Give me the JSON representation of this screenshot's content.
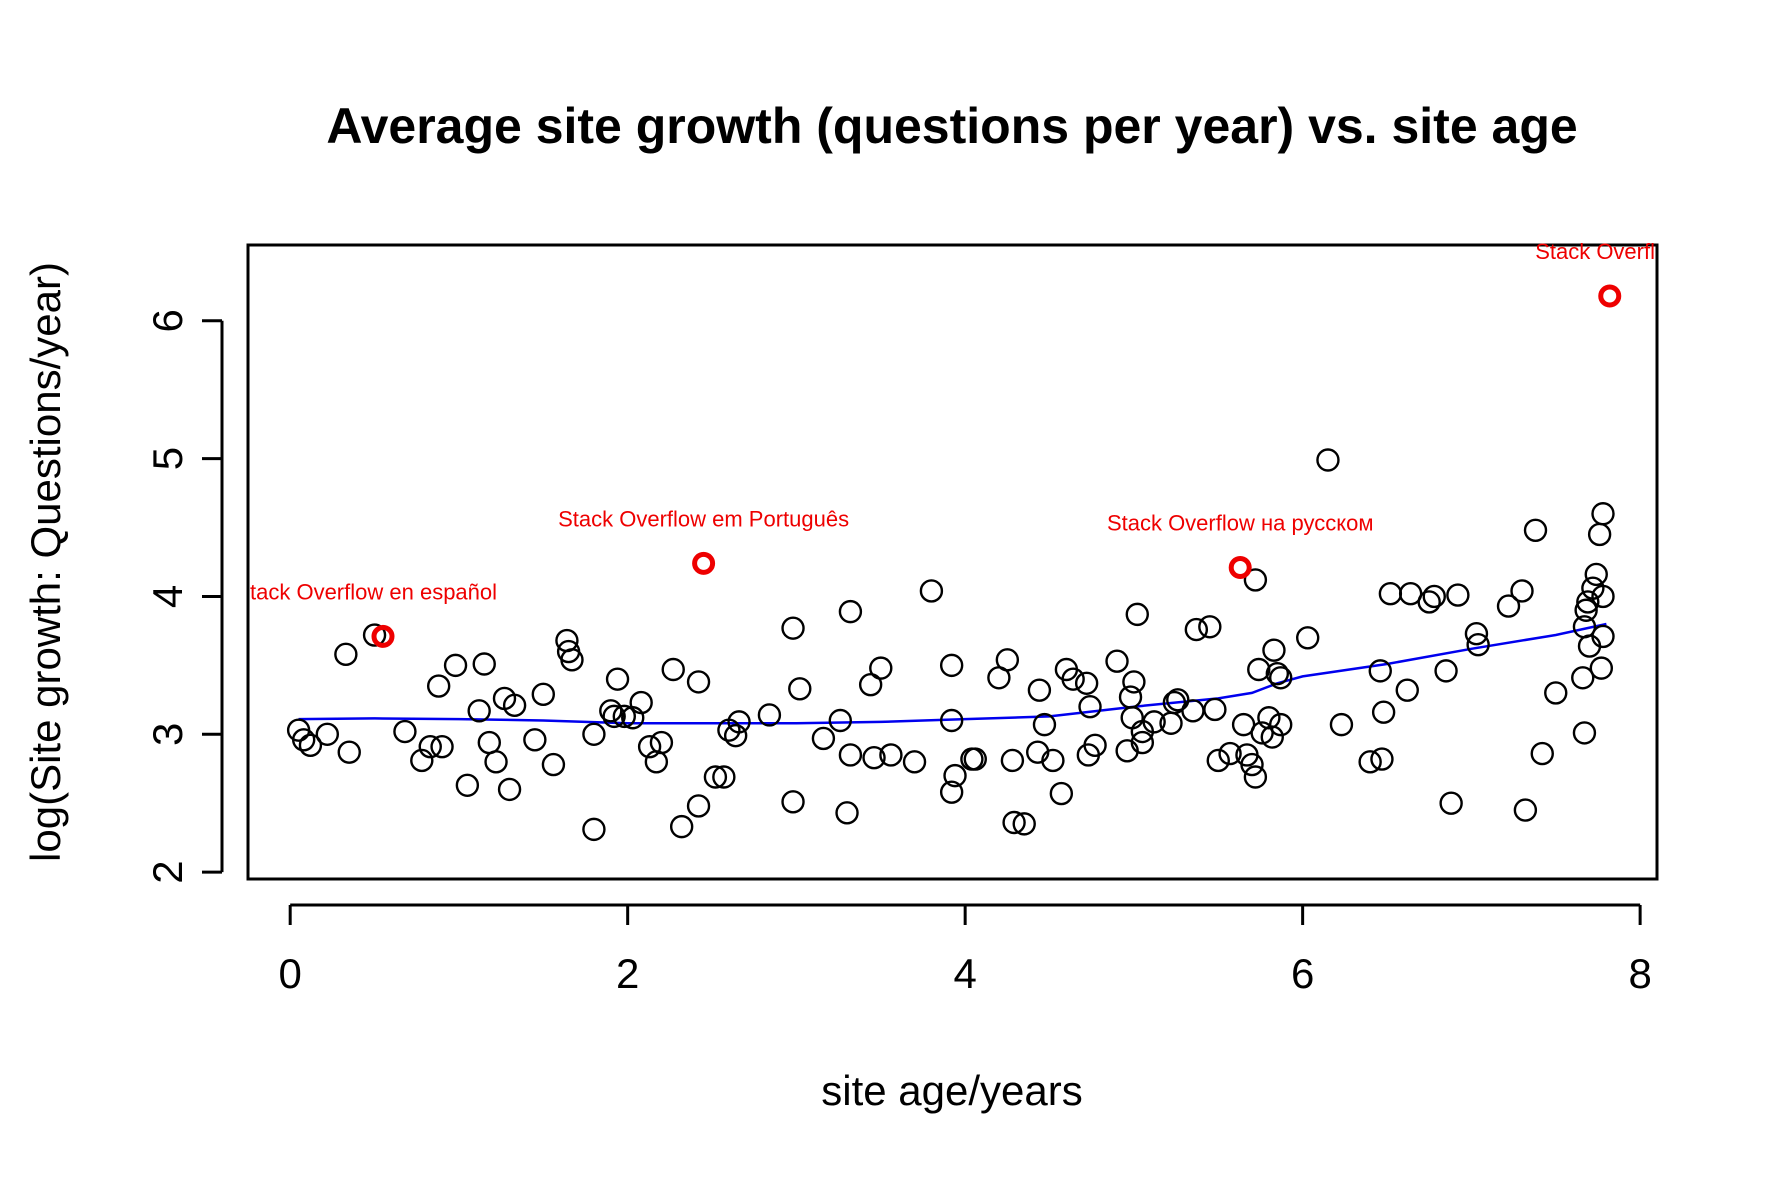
{
  "chart_data": {
    "type": "scatter",
    "title": "Average site growth (questions per year) vs. site age",
    "xlabel": "site age/years",
    "ylabel": "log(Site growth: Questions/year)",
    "xlim": [
      -0.25,
      8.1
    ],
    "ylim": [
      1.95,
      6.55
    ],
    "xticks": [
      0,
      2,
      4,
      6,
      8
    ],
    "yticks": [
      2,
      3,
      4,
      5,
      6
    ],
    "grid": false,
    "colors": {
      "points": "#000000",
      "highlight": "#ee0000",
      "trend": "#0000ee"
    },
    "series": [
      {
        "role": "sites",
        "points": [
          [
            0.05,
            3.03
          ],
          [
            0.08,
            2.96
          ],
          [
            0.12,
            2.92
          ],
          [
            0.22,
            3.0
          ],
          [
            0.33,
            3.58
          ],
          [
            0.35,
            2.87
          ],
          [
            0.5,
            3.72
          ],
          [
            0.68,
            3.02
          ],
          [
            0.78,
            2.81
          ],
          [
            0.83,
            2.91
          ],
          [
            0.88,
            3.35
          ],
          [
            0.9,
            2.91
          ],
          [
            0.98,
            3.5
          ],
          [
            1.05,
            2.63
          ],
          [
            1.12,
            3.17
          ],
          [
            1.15,
            3.51
          ],
          [
            1.18,
            2.94
          ],
          [
            1.22,
            2.8
          ],
          [
            1.27,
            3.26
          ],
          [
            1.3,
            2.6
          ],
          [
            1.33,
            3.21
          ],
          [
            1.45,
            2.96
          ],
          [
            1.5,
            3.29
          ],
          [
            1.56,
            2.78
          ],
          [
            1.64,
            3.68
          ],
          [
            1.65,
            3.6
          ],
          [
            1.67,
            3.54
          ],
          [
            1.8,
            2.31
          ],
          [
            1.8,
            3.0
          ],
          [
            1.9,
            3.17
          ],
          [
            1.92,
            3.13
          ],
          [
            1.94,
            3.4
          ],
          [
            1.98,
            3.13
          ],
          [
            2.03,
            3.12
          ],
          [
            2.08,
            3.23
          ],
          [
            2.13,
            2.91
          ],
          [
            2.17,
            2.8
          ],
          [
            2.2,
            2.94
          ],
          [
            2.27,
            3.47
          ],
          [
            2.32,
            2.33
          ],
          [
            2.42,
            2.48
          ],
          [
            2.42,
            3.38
          ],
          [
            2.52,
            2.69
          ],
          [
            2.57,
            2.69
          ],
          [
            2.6,
            3.03
          ],
          [
            2.64,
            2.99
          ],
          [
            2.66,
            3.09
          ],
          [
            2.84,
            3.14
          ],
          [
            2.98,
            3.77
          ],
          [
            2.98,
            2.51
          ],
          [
            3.02,
            3.33
          ],
          [
            3.16,
            2.97
          ],
          [
            3.26,
            3.1
          ],
          [
            3.3,
            2.43
          ],
          [
            3.32,
            2.85
          ],
          [
            3.32,
            3.89
          ],
          [
            3.44,
            3.36
          ],
          [
            3.46,
            2.83
          ],
          [
            3.5,
            3.48
          ],
          [
            3.56,
            2.85
          ],
          [
            3.7,
            2.8
          ],
          [
            3.8,
            4.04
          ],
          [
            3.92,
            3.5
          ],
          [
            3.92,
            3.1
          ],
          [
            3.92,
            2.58
          ],
          [
            3.94,
            2.7
          ],
          [
            4.04,
            2.82
          ],
          [
            4.06,
            2.82
          ],
          [
            4.2,
            3.41
          ],
          [
            4.25,
            3.54
          ],
          [
            4.28,
            2.81
          ],
          [
            4.29,
            2.36
          ],
          [
            4.35,
            2.35
          ],
          [
            4.43,
            2.87
          ],
          [
            4.44,
            3.32
          ],
          [
            4.47,
            3.07
          ],
          [
            4.52,
            2.81
          ],
          [
            4.57,
            2.57
          ],
          [
            4.6,
            3.47
          ],
          [
            4.64,
            3.4
          ],
          [
            4.72,
            3.37
          ],
          [
            4.73,
            2.85
          ],
          [
            4.74,
            3.2
          ],
          [
            4.77,
            2.92
          ],
          [
            4.9,
            3.53
          ],
          [
            4.96,
            2.88
          ],
          [
            4.98,
            3.27
          ],
          [
            4.99,
            3.12
          ],
          [
            5.0,
            3.38
          ],
          [
            5.02,
            3.87
          ],
          [
            5.05,
            2.94
          ],
          [
            5.05,
            3.02
          ],
          [
            5.12,
            3.09
          ],
          [
            5.22,
            3.08
          ],
          [
            5.24,
            3.23
          ],
          [
            5.26,
            3.25
          ],
          [
            5.35,
            3.17
          ],
          [
            5.37,
            3.76
          ],
          [
            5.45,
            3.78
          ],
          [
            5.48,
            3.18
          ],
          [
            5.5,
            2.81
          ],
          [
            5.57,
            2.86
          ],
          [
            5.65,
            3.07
          ],
          [
            5.67,
            2.85
          ],
          [
            5.7,
            2.78
          ],
          [
            5.72,
            4.12
          ],
          [
            5.72,
            2.69
          ],
          [
            5.74,
            3.47
          ],
          [
            5.76,
            3.01
          ],
          [
            5.8,
            3.12
          ],
          [
            5.82,
            2.98
          ],
          [
            5.83,
            3.61
          ],
          [
            5.85,
            3.44
          ],
          [
            5.87,
            3.41
          ],
          [
            5.87,
            3.07
          ],
          [
            6.03,
            3.7
          ],
          [
            6.15,
            4.99
          ],
          [
            6.23,
            3.07
          ],
          [
            6.4,
            2.8
          ],
          [
            6.46,
            3.46
          ],
          [
            6.47,
            2.82
          ],
          [
            6.48,
            3.16
          ],
          [
            6.52,
            4.02
          ],
          [
            6.62,
            3.32
          ],
          [
            6.64,
            4.02
          ],
          [
            6.75,
            3.96
          ],
          [
            6.78,
            4.0
          ],
          [
            6.85,
            3.46
          ],
          [
            6.88,
            2.5
          ],
          [
            6.92,
            4.01
          ],
          [
            7.03,
            3.73
          ],
          [
            7.04,
            3.65
          ],
          [
            7.22,
            3.93
          ],
          [
            7.3,
            4.04
          ],
          [
            7.32,
            2.45
          ],
          [
            7.38,
            4.48
          ],
          [
            7.42,
            2.86
          ],
          [
            7.5,
            3.3
          ],
          [
            7.66,
            3.41
          ],
          [
            7.67,
            3.01
          ],
          [
            7.67,
            3.78
          ],
          [
            7.68,
            3.9
          ],
          [
            7.69,
            3.96
          ],
          [
            7.7,
            3.64
          ],
          [
            7.72,
            4.06
          ],
          [
            7.74,
            4.16
          ],
          [
            7.76,
            4.45
          ],
          [
            7.78,
            4.6
          ],
          [
            7.78,
            4.0
          ],
          [
            7.78,
            3.71
          ],
          [
            7.77,
            3.48
          ]
        ]
      },
      {
        "role": "highlighted",
        "points": [
          {
            "x": 0.55,
            "y": 3.71,
            "label": "Stack Overflow en español",
            "label_visible": "tack Overflow en español"
          },
          {
            "x": 2.45,
            "y": 4.24,
            "label": "Stack Overflow em Português",
            "label_visible": "Stack Overflow em Português"
          },
          {
            "x": 5.63,
            "y": 4.21,
            "label": "Stack Overflow на русском",
            "label_visible": "Stack Overflow на русском"
          },
          {
            "x": 7.82,
            "y": 6.18,
            "label": "Stack Overflow",
            "label_visible": "Stack Overfl"
          }
        ]
      },
      {
        "role": "trend",
        "line": [
          [
            0.05,
            3.11
          ],
          [
            0.5,
            3.115
          ],
          [
            1.0,
            3.11
          ],
          [
            1.5,
            3.1
          ],
          [
            2.0,
            3.08
          ],
          [
            2.5,
            3.08
          ],
          [
            3.0,
            3.08
          ],
          [
            3.5,
            3.09
          ],
          [
            4.0,
            3.11
          ],
          [
            4.5,
            3.13
          ],
          [
            5.0,
            3.2
          ],
          [
            5.5,
            3.26
          ],
          [
            5.7,
            3.3
          ],
          [
            5.85,
            3.37
          ],
          [
            6.0,
            3.42
          ],
          [
            6.5,
            3.51
          ],
          [
            7.0,
            3.62
          ],
          [
            7.5,
            3.72
          ],
          [
            7.8,
            3.8
          ]
        ]
      }
    ]
  }
}
